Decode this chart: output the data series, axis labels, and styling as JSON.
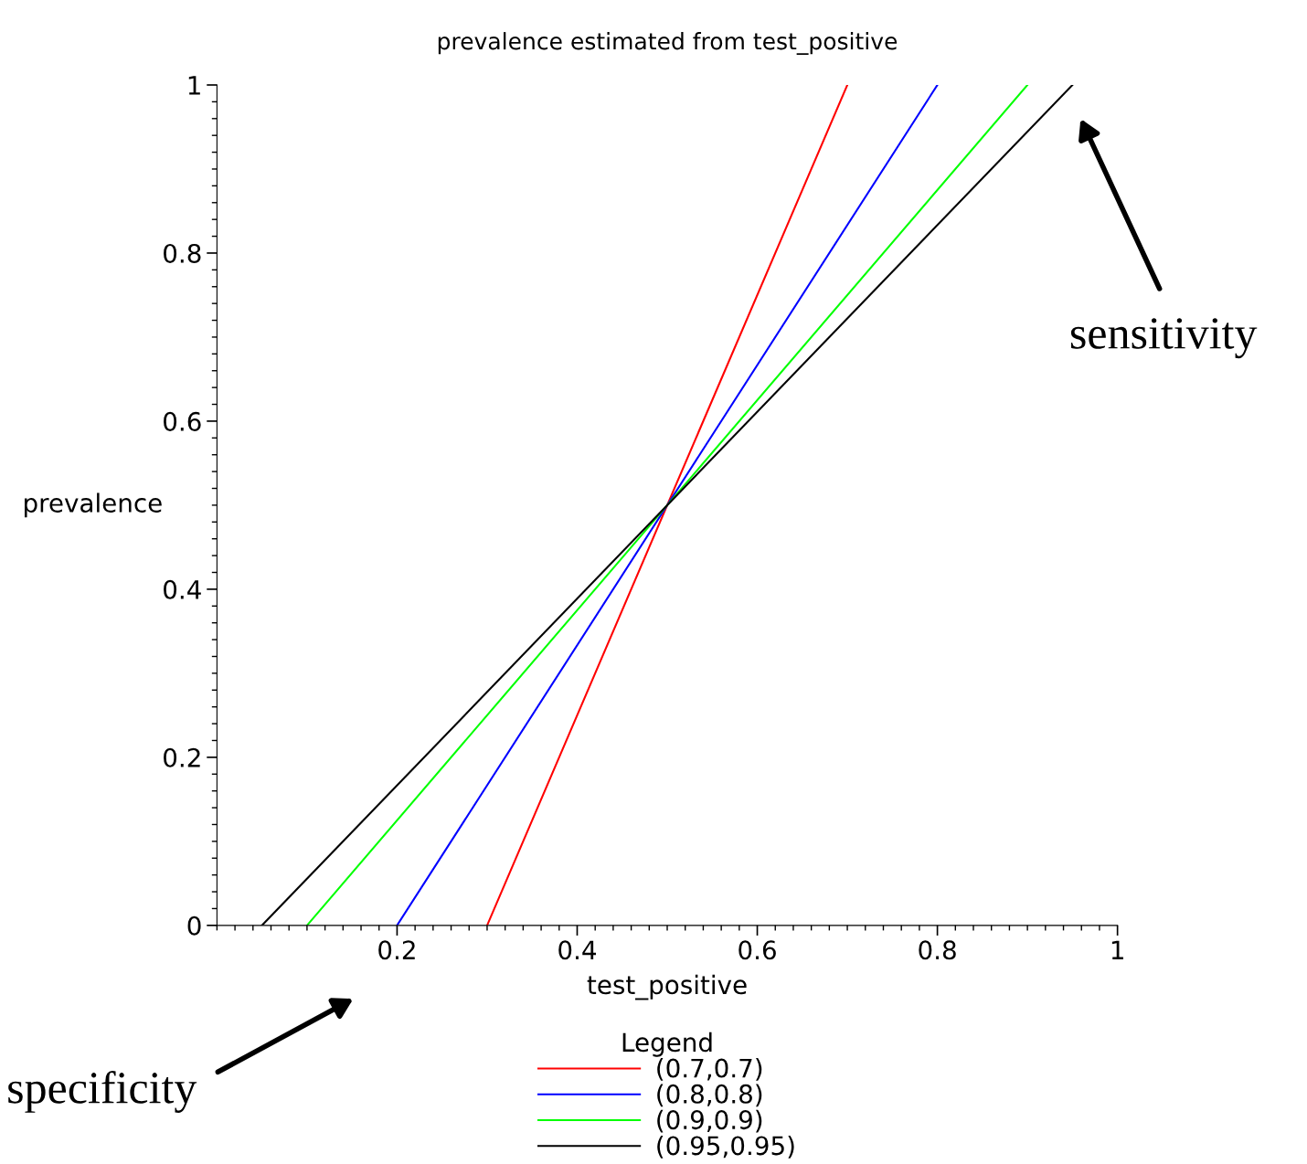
{
  "chart_data": {
    "type": "line",
    "title": "prevalence estimated from test_positive",
    "xlabel": "test_positive",
    "ylabel": "prevalence",
    "legend_title": "Legend",
    "series": [
      {
        "name": "(0.7,0.7)",
        "color": "#ff0000",
        "x": [
          0.3,
          0.7
        ],
        "values": [
          0,
          1
        ]
      },
      {
        "name": "(0.8,0.8)",
        "color": "#0000ff",
        "x": [
          0.2,
          0.8
        ],
        "values": [
          0,
          1
        ]
      },
      {
        "name": "(0.9,0.9)",
        "color": "#00ff00",
        "x": [
          0.1,
          0.9
        ],
        "values": [
          0,
          1
        ]
      },
      {
        "name": "(0.95,0.95)",
        "color": "#000000",
        "x": [
          0.05,
          0.95
        ],
        "values": [
          0,
          1
        ]
      }
    ],
    "xlim": [
      0,
      1
    ],
    "ylim": [
      0,
      1
    ],
    "xticks": [
      0.2,
      0.4,
      0.6,
      0.8,
      1
    ],
    "yticks": [
      0,
      0.2,
      0.4,
      0.6,
      0.8,
      1
    ],
    "annotations": [
      "sensitivity",
      "specificity"
    ],
    "legend": "bottom",
    "grid": false,
    "marker": "none",
    "line_style": "solid"
  }
}
